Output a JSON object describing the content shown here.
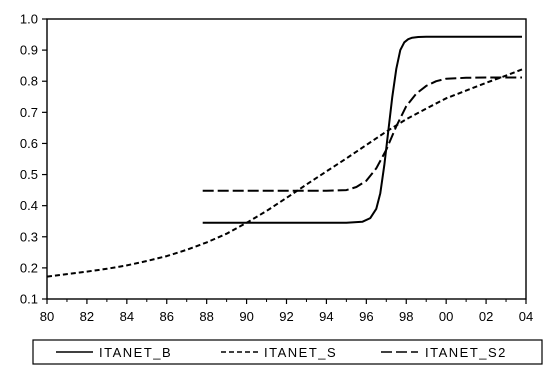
{
  "chart_data": {
    "type": "line",
    "xlim": [
      1980,
      2004
    ],
    "ylim": [
      0.1,
      1.0
    ],
    "x_tick_values": [
      1980,
      1982,
      1984,
      1986,
      1988,
      1990,
      1992,
      1994,
      1996,
      1998,
      2000,
      2002,
      2004
    ],
    "x_tick_labels": [
      "80",
      "82",
      "84",
      "86",
      "88",
      "90",
      "92",
      "94",
      "96",
      "98",
      "00",
      "02",
      "04"
    ],
    "y_ticks": [
      0.1,
      0.2,
      0.3,
      0.4,
      0.5,
      0.6,
      0.7,
      0.8,
      0.9,
      1.0
    ],
    "y_tick_labels": [
      "0.1",
      "0.2",
      "0.3",
      "0.4",
      "0.5",
      "0.6",
      "0.7",
      "0.8",
      "0.9",
      "1.0"
    ],
    "grid": false,
    "legend_position": "bottom",
    "series": [
      {
        "name": "ITANET_B",
        "dash": "solid",
        "color": "#000000",
        "x": [
          1987.8,
          1990,
          1992,
          1994,
          1995,
          1995.8,
          1996.2,
          1996.5,
          1996.7,
          1996.9,
          1997.1,
          1997.3,
          1997.5,
          1997.7,
          1997.9,
          1998.1,
          1998.3,
          1998.6,
          1999,
          2000,
          2002,
          2003.8
        ],
        "y": [
          0.345,
          0.345,
          0.345,
          0.345,
          0.345,
          0.348,
          0.36,
          0.39,
          0.44,
          0.53,
          0.64,
          0.75,
          0.84,
          0.9,
          0.925,
          0.935,
          0.94,
          0.942,
          0.943,
          0.943,
          0.943,
          0.943
        ]
      },
      {
        "name": "ITANET_S",
        "dash": "dashed",
        "color": "#000000",
        "x": [
          1980,
          1981,
          1982,
          1983,
          1984,
          1985,
          1986,
          1987,
          1988,
          1989,
          1990,
          1991,
          1992,
          1993,
          1994,
          1995,
          1996,
          1997,
          1998,
          1999,
          2000,
          2001,
          2002,
          2003,
          2003.8
        ],
        "y": [
          0.172,
          0.18,
          0.188,
          0.197,
          0.208,
          0.222,
          0.238,
          0.258,
          0.282,
          0.31,
          0.345,
          0.383,
          0.425,
          0.468,
          0.51,
          0.552,
          0.595,
          0.638,
          0.678,
          0.712,
          0.745,
          0.77,
          0.795,
          0.818,
          0.838
        ]
      },
      {
        "name": "ITANET_S2",
        "dash": "long-dashed",
        "color": "#000000",
        "x": [
          1987.8,
          1990,
          1992,
          1994,
          1995,
          1995.5,
          1996,
          1996.5,
          1997,
          1997.5,
          1998,
          1998.5,
          1999,
          1999.5,
          2000,
          2001,
          2002,
          2003.8
        ],
        "y": [
          0.448,
          0.448,
          0.448,
          0.448,
          0.45,
          0.46,
          0.48,
          0.52,
          0.58,
          0.655,
          0.72,
          0.76,
          0.785,
          0.8,
          0.808,
          0.811,
          0.812,
          0.812
        ]
      }
    ]
  }
}
